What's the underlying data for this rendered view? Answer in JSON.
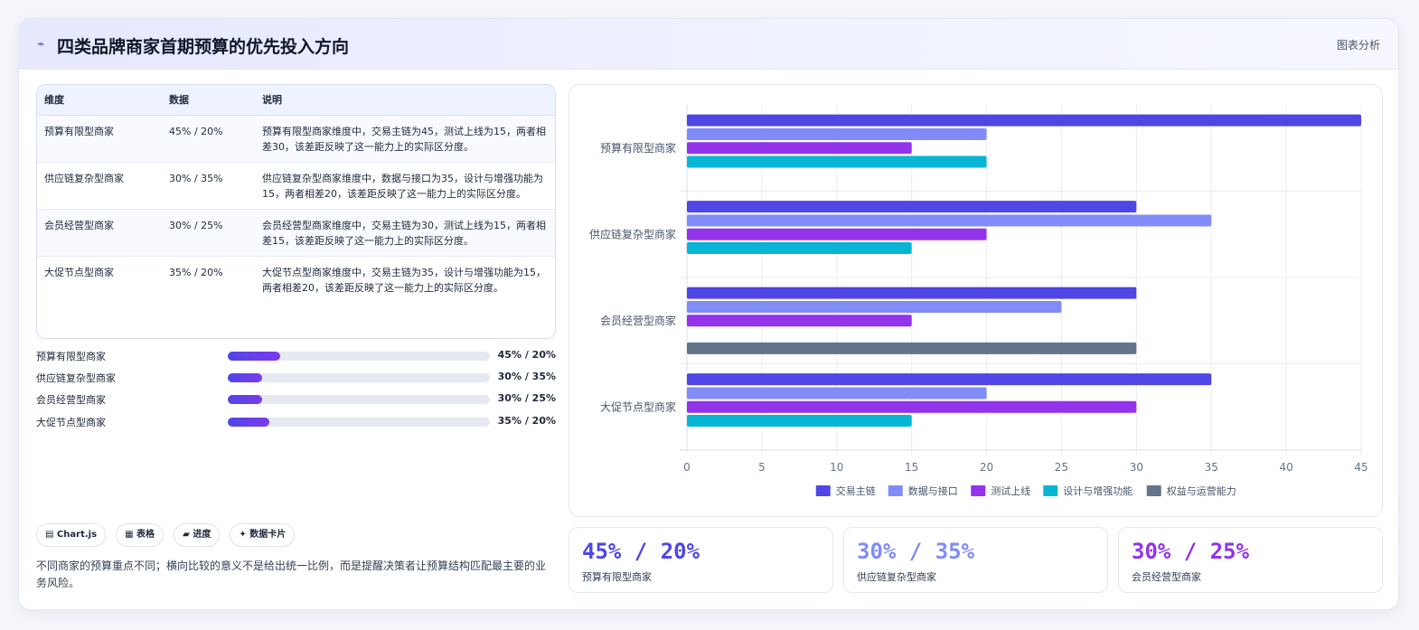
{
  "header": {
    "icon": "trend-icon",
    "title": "四类品牌商家首期预算的优先投入方向",
    "link": "图表分析"
  },
  "table": {
    "headers": [
      "维度",
      "数据",
      "说明"
    ],
    "rows": [
      {
        "name": "预算有限型商家",
        "data": "45% / 20%",
        "desc": "预算有限型商家维度中，交易主链为45，测试上线为15，两者相差30，该差距反映了这一能力上的实际区分度。"
      },
      {
        "name": "供应链复杂型商家",
        "data": "30% / 35%",
        "desc": "供应链复杂型商家维度中，数据与接口为35，设计与增强功能为15，两者相差20，该差距反映了这一能力上的实际区分度。"
      },
      {
        "name": "会员经营型商家",
        "data": "30% / 25%",
        "desc": "会员经营型商家维度中，交易主链为30，测试上线为15，两者相差15，该差距反映了这一能力上的实际区分度。"
      },
      {
        "name": "大促节点型商家",
        "data": "35% / 20%",
        "desc": "大促节点型商家维度中，交易主链为35，设计与增强功能为15，两者相差20，该差距反映了这一能力上的实际区分度。"
      }
    ]
  },
  "progress": [
    {
      "label": "预算有限型商家",
      "value": "45% / 20%",
      "fill": 0.2
    },
    {
      "label": "供应链复杂型商家",
      "value": "30% / 35%",
      "fill": 0.13
    },
    {
      "label": "会员经营型商家",
      "value": "30% / 25%",
      "fill": 0.13
    },
    {
      "label": "大促节点型商家",
      "value": "35% / 20%",
      "fill": 0.16
    }
  ],
  "chips": [
    "▤ Chart.js",
    "▦ 表格",
    "▰ 进度",
    "✦ 数据卡片"
  ],
  "note": "不同商家的预算重点不同；横向比较的意义不是给出统一比例，而是提醒决策者让预算结构匹配最主要的业务风险。",
  "stats": [
    {
      "value": "45% / 20%",
      "label": "预算有限型商家",
      "color": "#4f46e5"
    },
    {
      "value": "30% / 35%",
      "label": "供应链复杂型商家",
      "color": "#818cf8"
    },
    {
      "value": "30% / 25%",
      "label": "会员经营型商家",
      "color": "#9333ea"
    }
  ],
  "chart_data": {
    "type": "bar",
    "orientation": "horizontal",
    "categories": [
      "预算有限型商家",
      "供应链复杂型商家",
      "会员经营型商家",
      "大促节点型商家"
    ],
    "series": [
      {
        "name": "交易主链",
        "color": "#4f46e5",
        "values": [
          45,
          30,
          30,
          35
        ]
      },
      {
        "name": "数据与接口",
        "color": "#818cf8",
        "values": [
          20,
          35,
          25,
          20
        ]
      },
      {
        "name": "测试上线",
        "color": "#9333ea",
        "values": [
          15,
          20,
          15,
          30
        ]
      },
      {
        "name": "设计与增强功能",
        "color": "#06b6d4",
        "values": [
          20,
          15,
          null,
          15
        ]
      },
      {
        "name": "权益与运营能力",
        "color": "#64748b",
        "values": [
          null,
          null,
          30,
          null
        ]
      }
    ],
    "xticks": [
      0,
      5,
      10,
      15,
      20,
      25,
      30,
      35,
      40,
      45
    ],
    "xlim": [
      0,
      45
    ],
    "grid": true,
    "legend": "bottom"
  }
}
